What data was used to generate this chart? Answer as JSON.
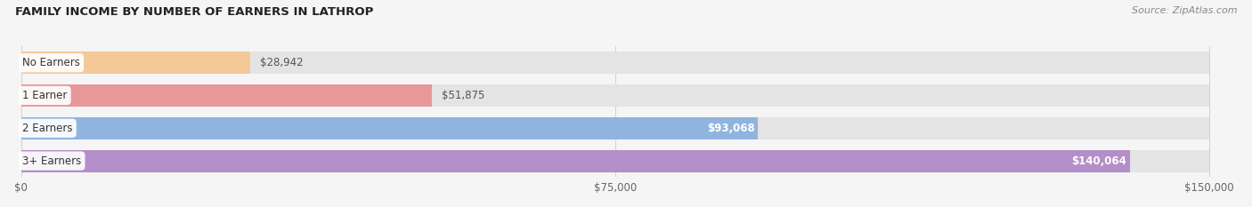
{
  "title": "FAMILY INCOME BY NUMBER OF EARNERS IN LATHROP",
  "source": "Source: ZipAtlas.com",
  "categories": [
    "No Earners",
    "1 Earner",
    "2 Earners",
    "3+ Earners"
  ],
  "values": [
    28942,
    51875,
    93068,
    140064
  ],
  "bar_colors": [
    "#f5c898",
    "#e89898",
    "#90b4e0",
    "#b48ec8"
  ],
  "bar_bg_color": "#e4e4e4",
  "value_label_colors": [
    "#666666",
    "#666666",
    "#ffffff",
    "#ffffff"
  ],
  "xlim_max": 150000,
  "xtick_labels": [
    "$0",
    "$75,000",
    "$150,000"
  ],
  "value_labels": [
    "$28,942",
    "$51,875",
    "$93,068",
    "$140,064"
  ],
  "background_color": "#f5f5f5",
  "figsize": [
    14.06,
    2.33
  ],
  "dpi": 100
}
